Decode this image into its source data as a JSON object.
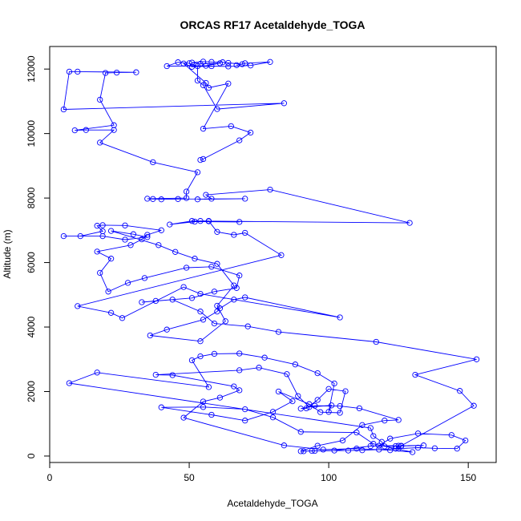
{
  "chart_data": {
    "type": "line",
    "title": "ORCAS RF17 Acetaldehyde_TOGA",
    "xlabel": "Acetaldehyde_TOGA",
    "ylabel": "Altitude (m)",
    "xlim": [
      0,
      160
    ],
    "ylim": [
      -200,
      12700
    ],
    "xticks": [
      0,
      50,
      100,
      150
    ],
    "yticks": [
      0,
      2000,
      4000,
      6000,
      8000,
      10000,
      12000
    ],
    "grid": false,
    "legend": "none",
    "series": [
      {
        "color": "#0000ff",
        "marker": "open-circle",
        "points": [
          [
            91,
            150
          ],
          [
            94,
            160
          ],
          [
            107,
            170
          ],
          [
            112,
            180
          ],
          [
            118,
            200
          ],
          [
            125,
            230
          ],
          [
            132,
            260
          ],
          [
            138,
            240
          ],
          [
            146,
            230
          ],
          [
            149,
            480
          ],
          [
            144,
            650
          ],
          [
            132,
            700
          ],
          [
            122,
            540
          ],
          [
            118,
            320
          ],
          [
            126,
            310
          ],
          [
            134,
            330
          ],
          [
            125,
            320
          ],
          [
            115,
            310
          ],
          [
            102,
            170
          ],
          [
            95,
            160
          ],
          [
            90,
            150
          ],
          [
            96,
            320
          ],
          [
            105,
            480
          ],
          [
            112,
            960
          ],
          [
            120,
            1100
          ],
          [
            125,
            1120
          ],
          [
            111,
            1480
          ],
          [
            104,
            1550
          ],
          [
            95,
            1560
          ],
          [
            90,
            1470
          ],
          [
            92,
            1480
          ],
          [
            96,
            1740
          ],
          [
            100,
            2080
          ],
          [
            106,
            2010
          ],
          [
            104,
            1340
          ],
          [
            97,
            1360
          ],
          [
            93,
            1610
          ],
          [
            82,
            2000
          ],
          [
            87,
            1700
          ],
          [
            80,
            1370
          ],
          [
            70,
            1100
          ],
          [
            58,
            1280
          ],
          [
            40,
            1510
          ],
          [
            55,
            1520
          ],
          [
            70,
            1450
          ],
          [
            80,
            1200
          ],
          [
            90,
            750
          ],
          [
            110,
            730
          ],
          [
            116,
            380
          ],
          [
            124,
            230
          ],
          [
            130,
            120
          ],
          [
            122,
            180
          ],
          [
            110,
            230
          ],
          [
            98,
            200
          ],
          [
            84,
            330
          ],
          [
            48,
            1190
          ],
          [
            55,
            1690
          ],
          [
            61,
            1810
          ],
          [
            68,
            2040
          ],
          [
            66,
            2160
          ],
          [
            44,
            2510
          ],
          [
            38,
            2520
          ],
          [
            68,
            2660
          ],
          [
            75,
            2740
          ],
          [
            85,
            2540
          ],
          [
            89,
            1860
          ],
          [
            93,
            1520
          ],
          [
            101,
            1570
          ],
          [
            100,
            1370
          ],
          [
            102,
            2250
          ],
          [
            96,
            2570
          ],
          [
            88,
            2840
          ],
          [
            77,
            3050
          ],
          [
            68,
            3180
          ],
          [
            59,
            3170
          ],
          [
            54,
            3090
          ],
          [
            51,
            2970
          ],
          [
            57,
            2140
          ],
          [
            17,
            2590
          ],
          [
            7,
            2260
          ],
          [
            115,
            870
          ],
          [
            116,
            620
          ],
          [
            119,
            440
          ],
          [
            120,
            300
          ],
          [
            124,
            310
          ],
          [
            126,
            320
          ],
          [
            152,
            1560
          ],
          [
            147,
            2020
          ],
          [
            131,
            2520
          ],
          [
            153,
            3000
          ],
          [
            117,
            3540
          ],
          [
            82,
            3850
          ],
          [
            71,
            4020
          ],
          [
            59,
            4110
          ],
          [
            54,
            4480
          ],
          [
            44,
            4850
          ],
          [
            33,
            4770
          ],
          [
            38,
            4810
          ],
          [
            51,
            4900
          ],
          [
            59,
            5100
          ],
          [
            67,
            5210
          ],
          [
            68,
            5600
          ],
          [
            58,
            5870
          ],
          [
            49,
            5840
          ],
          [
            34,
            5520
          ],
          [
            28,
            5370
          ],
          [
            21,
            5100
          ],
          [
            18,
            5680
          ],
          [
            22,
            6120
          ],
          [
            17,
            6340
          ],
          [
            29,
            6540
          ],
          [
            33,
            6720
          ],
          [
            35,
            6860
          ],
          [
            40,
            7000
          ],
          [
            27,
            7150
          ],
          [
            19,
            7160
          ],
          [
            17,
            7140
          ],
          [
            19,
            6970
          ],
          [
            11,
            6820
          ],
          [
            5,
            6820
          ],
          [
            19,
            6820
          ],
          [
            27,
            6710
          ],
          [
            35,
            6790
          ],
          [
            30,
            6880
          ],
          [
            22,
            6980
          ],
          [
            39,
            6540
          ],
          [
            45,
            6330
          ],
          [
            52,
            6120
          ],
          [
            60,
            5960
          ],
          [
            66,
            5290
          ],
          [
            60,
            4660
          ],
          [
            63,
            4180
          ],
          [
            54,
            3560
          ],
          [
            36,
            3740
          ],
          [
            42,
            3920
          ],
          [
            55,
            4230
          ],
          [
            60,
            4480
          ],
          [
            61,
            4580
          ],
          [
            66,
            4850
          ],
          [
            70,
            4920
          ],
          [
            104,
            4300
          ],
          [
            54,
            5030
          ],
          [
            48,
            5240
          ],
          [
            26,
            4280
          ],
          [
            22,
            4440
          ],
          [
            10,
            4650
          ],
          [
            83,
            6230
          ],
          [
            70,
            6920
          ],
          [
            66,
            6860
          ],
          [
            60,
            6950
          ],
          [
            57,
            7290
          ],
          [
            54,
            7290
          ],
          [
            57,
            7280
          ],
          [
            68,
            7260
          ],
          [
            52,
            7270
          ],
          [
            43,
            7180
          ],
          [
            51,
            7290
          ],
          [
            129,
            7230
          ],
          [
            79,
            8260
          ],
          [
            56,
            8100
          ],
          [
            58,
            7980
          ],
          [
            53,
            7960
          ],
          [
            70,
            7980
          ],
          [
            46,
            7970
          ],
          [
            40,
            7960
          ],
          [
            37,
            7970
          ],
          [
            35,
            7980
          ],
          [
            49,
            8000
          ],
          [
            49,
            8200
          ],
          [
            53,
            8800
          ],
          [
            37,
            9110
          ],
          [
            18,
            9720
          ],
          [
            23,
            10110
          ],
          [
            13,
            10110
          ],
          [
            9,
            10100
          ],
          [
            23,
            10260
          ],
          [
            18,
            11050
          ],
          [
            20,
            11880
          ],
          [
            24,
            11890
          ],
          [
            31,
            11900
          ],
          [
            10,
            11920
          ],
          [
            7,
            11920
          ],
          [
            5,
            10750
          ],
          [
            84,
            10940
          ],
          [
            60,
            10760
          ],
          [
            55,
            11500
          ],
          [
            53,
            11640
          ],
          [
            53,
            12090
          ],
          [
            50,
            12180
          ],
          [
            46,
            12210
          ],
          [
            42,
            12090
          ],
          [
            56,
            12100
          ],
          [
            61,
            12180
          ],
          [
            54,
            12160
          ],
          [
            51,
            12200
          ],
          [
            55,
            12230
          ],
          [
            58,
            12220
          ],
          [
            62,
            12210
          ],
          [
            64,
            12190
          ],
          [
            69,
            12150
          ],
          [
            67,
            12120
          ],
          [
            70,
            12180
          ],
          [
            79,
            12220
          ],
          [
            72,
            12110
          ],
          [
            64,
            12080
          ],
          [
            58,
            12090
          ],
          [
            51,
            12070
          ],
          [
            48,
            12170
          ],
          [
            56,
            11570
          ],
          [
            57,
            11420
          ],
          [
            64,
            11550
          ],
          [
            55,
            10150
          ],
          [
            65,
            10230
          ],
          [
            72,
            10030
          ],
          [
            68,
            9790
          ],
          [
            55,
            9210
          ],
          [
            54,
            9180
          ]
        ]
      }
    ]
  }
}
